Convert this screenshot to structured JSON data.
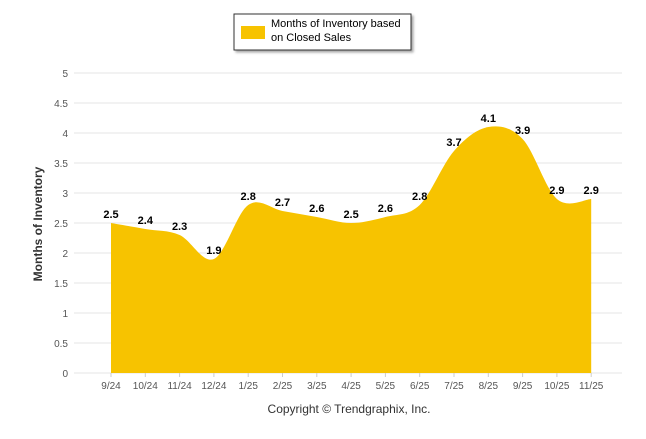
{
  "legend": {
    "label_line1": "Months of Inventory based",
    "label_line2": "on Closed Sales"
  },
  "footer": {
    "copyright": "Copyright © Trendgraphix, Inc."
  },
  "colors": {
    "area": "#F7C300",
    "grid": "#e6e6e6",
    "text": "#333333",
    "axis_text": "#555555"
  },
  "chart_data": {
    "type": "area",
    "categories": [
      "9/24",
      "10/24",
      "11/24",
      "12/24",
      "1/25",
      "2/25",
      "3/25",
      "4/25",
      "5/25",
      "6/25",
      "7/25",
      "8/25",
      "9/25",
      "10/25",
      "11/25"
    ],
    "series": [
      {
        "name": "Months of Inventory based on Closed Sales",
        "values": [
          2.5,
          2.4,
          2.3,
          1.9,
          2.8,
          2.7,
          2.6,
          2.5,
          2.6,
          2.8,
          3.7,
          4.1,
          3.9,
          2.9,
          2.9
        ]
      }
    ],
    "ylabel": "Months of Inventory",
    "xlabel": "",
    "ylim": [
      0,
      5
    ],
    "yticks": [
      "0",
      "0.5",
      "1",
      "1.5",
      "2",
      "2.5",
      "3",
      "3.5",
      "4",
      "4.5",
      "5"
    ],
    "grid": true,
    "legend_position": "top-center",
    "data_labels": true
  }
}
